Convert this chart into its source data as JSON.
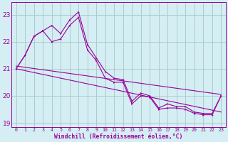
{
  "xlabel": "Windchill (Refroidissement éolien,°C)",
  "hours": [
    0,
    1,
    2,
    3,
    4,
    5,
    6,
    7,
    8,
    9,
    10,
    11,
    12,
    13,
    14,
    15,
    16,
    17,
    18,
    19,
    20,
    21,
    22,
    23
  ],
  "series1": [
    21.0,
    21.5,
    22.2,
    22.4,
    22.6,
    22.3,
    22.8,
    23.1,
    21.9,
    21.4,
    20.9,
    20.65,
    20.6,
    19.8,
    20.1,
    20.0,
    19.55,
    19.7,
    19.6,
    19.6,
    19.4,
    19.35,
    19.35,
    20.0
  ],
  "series2": [
    21.0,
    21.5,
    22.2,
    22.4,
    22.0,
    22.1,
    22.6,
    22.9,
    21.7,
    21.3,
    20.65,
    20.5,
    20.5,
    19.7,
    20.0,
    19.95,
    19.5,
    19.55,
    19.55,
    19.5,
    19.35,
    19.3,
    19.3,
    20.0
  ],
  "trend1": [
    21.0,
    19.4
  ],
  "trend2": [
    21.1,
    20.05
  ],
  "line_color": "#990099",
  "bg_color": "#d4eef4",
  "grid_color": "#aacccc",
  "ylim": [
    18.85,
    23.45
  ],
  "xlim": [
    -0.5,
    23.5
  ],
  "yticks": [
    19,
    20,
    21,
    22,
    23
  ],
  "xticks": [
    0,
    1,
    2,
    3,
    4,
    5,
    6,
    7,
    8,
    9,
    10,
    11,
    12,
    13,
    14,
    15,
    16,
    17,
    18,
    19,
    20,
    21,
    22,
    23
  ]
}
